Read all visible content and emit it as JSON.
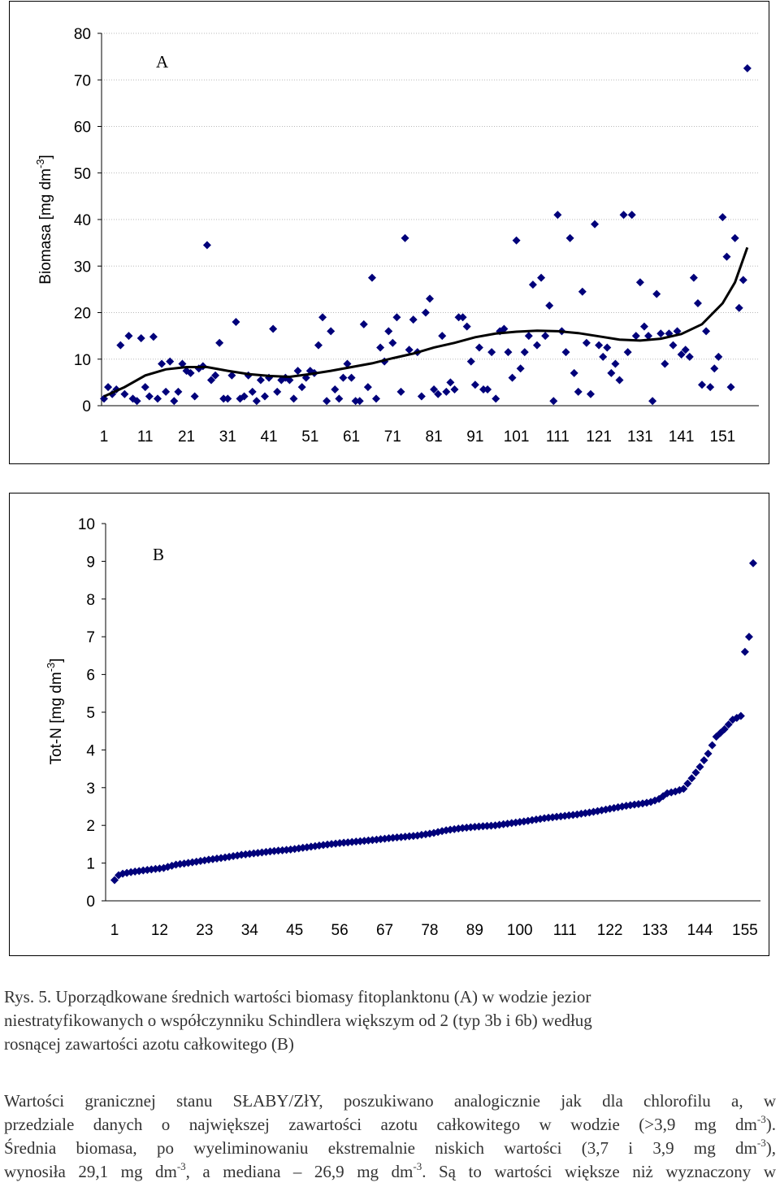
{
  "chart_data": [
    {
      "type": "scatter",
      "panel_label": "A",
      "ylabel": "Biomasa [mg dm",
      "ylabel_exp": "-3",
      "ylabel_end": "]",
      "xlabel": "",
      "ylim": [
        0,
        80
      ],
      "yticks": [
        0,
        10,
        20,
        30,
        40,
        50,
        60,
        70,
        80
      ],
      "xlim": [
        1,
        159
      ],
      "xticks": [
        1,
        11,
        21,
        31,
        41,
        51,
        61,
        71,
        81,
        91,
        101,
        111,
        121,
        131,
        141,
        151
      ],
      "grid": true,
      "trendline": true,
      "trend": [
        [
          1,
          2
        ],
        [
          6,
          4
        ],
        [
          11,
          6.5
        ],
        [
          16,
          7.8
        ],
        [
          21,
          8.3
        ],
        [
          26,
          8.3
        ],
        [
          31,
          7.5
        ],
        [
          36,
          6.8
        ],
        [
          41,
          6.4
        ],
        [
          46,
          6.2
        ],
        [
          51,
          6.8
        ],
        [
          56,
          7.5
        ],
        [
          61,
          8.3
        ],
        [
          66,
          9.1
        ],
        [
          71,
          10.2
        ],
        [
          76,
          11.2
        ],
        [
          81,
          12.5
        ],
        [
          86,
          13.5
        ],
        [
          91,
          14.7
        ],
        [
          96,
          15.5
        ],
        [
          101,
          15.9
        ],
        [
          106,
          16.1
        ],
        [
          111,
          16
        ],
        [
          116,
          15.6
        ],
        [
          121,
          14.9
        ],
        [
          126,
          14.2
        ],
        [
          131,
          14
        ],
        [
          136,
          14.4
        ],
        [
          141,
          15.4
        ],
        [
          146,
          17.5
        ],
        [
          151,
          22
        ],
        [
          154,
          26.5
        ],
        [
          157,
          34
        ]
      ],
      "points": [
        [
          1,
          1.5
        ],
        [
          2,
          4
        ],
        [
          3,
          2.5
        ],
        [
          4,
          3.5
        ],
        [
          5,
          13
        ],
        [
          6,
          2.5
        ],
        [
          7,
          15
        ],
        [
          8,
          1.5
        ],
        [
          9,
          1
        ],
        [
          10,
          14.5
        ],
        [
          11,
          4
        ],
        [
          12,
          2
        ],
        [
          13,
          14.8
        ],
        [
          14,
          1.5
        ],
        [
          15,
          9
        ],
        [
          16,
          3
        ],
        [
          17,
          9.5
        ],
        [
          18,
          1
        ],
        [
          19,
          3
        ],
        [
          20,
          9
        ],
        [
          21,
          7.5
        ],
        [
          22,
          7
        ],
        [
          23,
          2
        ],
        [
          24,
          8
        ],
        [
          25,
          8.5
        ],
        [
          26,
          34.5
        ],
        [
          27,
          5.5
        ],
        [
          28,
          6.5
        ],
        [
          29,
          13.5
        ],
        [
          30,
          1.5
        ],
        [
          31,
          1.5
        ],
        [
          32,
          6.5
        ],
        [
          33,
          18
        ],
        [
          34,
          1.5
        ],
        [
          35,
          2
        ],
        [
          36,
          6.5
        ],
        [
          37,
          3
        ],
        [
          38,
          1
        ],
        [
          39,
          5.5
        ],
        [
          40,
          2
        ],
        [
          41,
          6
        ],
        [
          42,
          16.5
        ],
        [
          43,
          3
        ],
        [
          44,
          5.5
        ],
        [
          45,
          6
        ],
        [
          46,
          5.5
        ],
        [
          47,
          1.5
        ],
        [
          48,
          7.5
        ],
        [
          49,
          4
        ],
        [
          50,
          6
        ],
        [
          51,
          7.5
        ],
        [
          52,
          7
        ],
        [
          53,
          13
        ],
        [
          54,
          19
        ],
        [
          55,
          1
        ],
        [
          56,
          16
        ],
        [
          57,
          3.5
        ],
        [
          58,
          1.5
        ],
        [
          59,
          6
        ],
        [
          60,
          9
        ],
        [
          61,
          6
        ],
        [
          62,
          1
        ],
        [
          63,
          1
        ],
        [
          64,
          17.5
        ],
        [
          65,
          4
        ],
        [
          66,
          27.5
        ],
        [
          67,
          1.5
        ],
        [
          68,
          12.5
        ],
        [
          69,
          9.5
        ],
        [
          70,
          16
        ],
        [
          71,
          13.5
        ],
        [
          72,
          19
        ],
        [
          73,
          3
        ],
        [
          74,
          36
        ],
        [
          75,
          12
        ],
        [
          76,
          18.5
        ],
        [
          77,
          11.5
        ],
        [
          78,
          2
        ],
        [
          79,
          20
        ],
        [
          80,
          23
        ],
        [
          81,
          3.5
        ],
        [
          82,
          2.5
        ],
        [
          83,
          15
        ],
        [
          84,
          3
        ],
        [
          85,
          5
        ],
        [
          86,
          3.5
        ],
        [
          87,
          19
        ],
        [
          88,
          19
        ],
        [
          89,
          17
        ],
        [
          90,
          9.5
        ],
        [
          91,
          4.5
        ],
        [
          92,
          12.5
        ],
        [
          93,
          3.5
        ],
        [
          94,
          3.5
        ],
        [
          95,
          11.5
        ],
        [
          96,
          1.5
        ],
        [
          97,
          16
        ],
        [
          98,
          16.5
        ],
        [
          99,
          11.5
        ],
        [
          100,
          6
        ],
        [
          101,
          35.5
        ],
        [
          102,
          8
        ],
        [
          103,
          11.5
        ],
        [
          104,
          15
        ],
        [
          105,
          26
        ],
        [
          106,
          13
        ],
        [
          107,
          27.5
        ],
        [
          108,
          15
        ],
        [
          109,
          21.5
        ],
        [
          110,
          1
        ],
        [
          111,
          41
        ],
        [
          112,
          16
        ],
        [
          113,
          11.5
        ],
        [
          114,
          36
        ],
        [
          115,
          7
        ],
        [
          116,
          3
        ],
        [
          117,
          24.5
        ],
        [
          118,
          13.5
        ],
        [
          119,
          2.5
        ],
        [
          120,
          39
        ],
        [
          121,
          13
        ],
        [
          122,
          10.5
        ],
        [
          123,
          12.5
        ],
        [
          124,
          7
        ],
        [
          125,
          9
        ],
        [
          126,
          5.5
        ],
        [
          127,
          41
        ],
        [
          128,
          11.5
        ],
        [
          129,
          41
        ],
        [
          130,
          15
        ],
        [
          131,
          26.5
        ],
        [
          132,
          17
        ],
        [
          133,
          15
        ],
        [
          134,
          1
        ],
        [
          135,
          24
        ],
        [
          136,
          15.5
        ],
        [
          137,
          9
        ],
        [
          138,
          15.5
        ],
        [
          139,
          13
        ],
        [
          140,
          16
        ],
        [
          141,
          11
        ],
        [
          142,
          12
        ],
        [
          143,
          10.5
        ],
        [
          144,
          27.5
        ],
        [
          145,
          22
        ],
        [
          146,
          4.5
        ],
        [
          147,
          16
        ],
        [
          148,
          4
        ],
        [
          149,
          8
        ],
        [
          150,
          10.5
        ],
        [
          151,
          40.5
        ],
        [
          152,
          32
        ],
        [
          153,
          4
        ],
        [
          154,
          36
        ],
        [
          155,
          21
        ],
        [
          156,
          27
        ],
        [
          157,
          72.5
        ]
      ]
    },
    {
      "type": "scatter",
      "panel_label": "B",
      "ylabel": "Tot-N [mg dm",
      "ylabel_exp": "-3",
      "ylabel_end": "]",
      "xlabel": "",
      "ylim": [
        0,
        10
      ],
      "yticks": [
        0,
        1,
        2,
        3,
        4,
        5,
        6,
        7,
        8,
        9,
        10
      ],
      "xlim": [
        1,
        158
      ],
      "xticks": [
        1,
        12,
        23,
        34,
        45,
        56,
        67,
        78,
        89,
        100,
        111,
        122,
        133,
        144,
        155
      ],
      "grid": false,
      "trendline": false,
      "anchors": [
        [
          1,
          0.55
        ],
        [
          2,
          0.68
        ],
        [
          3,
          0.72
        ],
        [
          5,
          0.76
        ],
        [
          9,
          0.82
        ],
        [
          13,
          0.87
        ],
        [
          16,
          0.96
        ],
        [
          20,
          1.02
        ],
        [
          24,
          1.09
        ],
        [
          28,
          1.15
        ],
        [
          32,
          1.22
        ],
        [
          36,
          1.27
        ],
        [
          40,
          1.32
        ],
        [
          44,
          1.36
        ],
        [
          48,
          1.42
        ],
        [
          52,
          1.48
        ],
        [
          56,
          1.53
        ],
        [
          60,
          1.57
        ],
        [
          64,
          1.61
        ],
        [
          68,
          1.66
        ],
        [
          72,
          1.7
        ],
        [
          75,
          1.73
        ],
        [
          79,
          1.8
        ],
        [
          82,
          1.87
        ],
        [
          86,
          1.93
        ],
        [
          90,
          1.97
        ],
        [
          94,
          2.0
        ],
        [
          98,
          2.06
        ],
        [
          102,
          2.12
        ],
        [
          106,
          2.19
        ],
        [
          110,
          2.24
        ],
        [
          114,
          2.29
        ],
        [
          118,
          2.36
        ],
        [
          122,
          2.44
        ],
        [
          126,
          2.52
        ],
        [
          130,
          2.58
        ],
        [
          132,
          2.62
        ],
        [
          134,
          2.7
        ],
        [
          136,
          2.85
        ],
        [
          138,
          2.9
        ],
        [
          140,
          2.97
        ],
        [
          142,
          3.25
        ],
        [
          144,
          3.55
        ],
        [
          146,
          3.9
        ],
        [
          148,
          4.35
        ],
        [
          150,
          4.55
        ],
        [
          152,
          4.8
        ],
        [
          154,
          4.9
        ],
        [
          155,
          6.6
        ],
        [
          156,
          7.0
        ],
        [
          157,
          8.95
        ]
      ]
    }
  ],
  "caption": {
    "lines": [
      "Rys. 5. Uporządkowane średnich wartości biomasy fitoplanktonu (A) w wodzie jezior",
      "niestratyfikowanych o współczynniku Schindlera większym od 2 (typ  3b i 6b) według",
      "rosnącej zawartości azotu całkowitego (B)"
    ]
  },
  "body_text": {
    "line1": "Wartości granicznej stanu SŁABY/ZłY, poszukiwano analogicznie jak dla chlorofilu a, w",
    "line2a": "przedziale danych o największej zawartości azotu całkowitego w wodzie (>3,9 mg dm",
    "line2exp": "-3",
    "line2b": ").",
    "line3a": "Średnia biomasa, po wyeliminowaniu ekstremalnie niskich wartości (3,7 i 3,9 mg dm",
    "line3exp": "-3",
    "line3b": "),",
    "line4a": "wynosiła 29,1 mg dm",
    "line4exp": "-3",
    "line4b": ", a mediana – 26,9 mg dm",
    "line4exp2": "-3",
    "line4c": ". Są to wartości większe niż wyznaczony w"
  }
}
